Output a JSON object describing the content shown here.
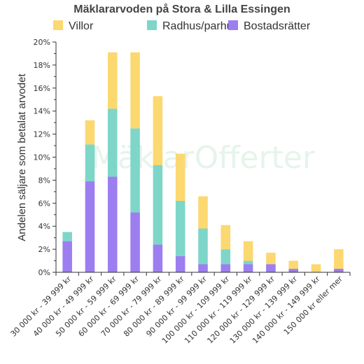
{
  "chart_data": {
    "type": "bar",
    "stacked": true,
    "title": "Mäklararvoden på Stora & Lilla Essingen",
    "ylabel": "Andelen säljare som betalat arvodet",
    "xlabel": "",
    "ylim": [
      0,
      20
    ],
    "y_ticks": [
      "0%",
      "2%",
      "4%",
      "6%",
      "8%",
      "10%",
      "12%",
      "14%",
      "16%",
      "18%",
      "20%"
    ],
    "grid": false,
    "legend_position": "top",
    "watermark": "MäklarOfferter",
    "categories": [
      "30 000 kr - 39 999 kr",
      "40 000 kr - 49 999 kr",
      "50 000 kr - 59 999 kr",
      "60 000 kr - 69 999 kr",
      "70 000 kr - 79 999 kr",
      "80 000 kr - 89 999 kr",
      "90 000 kr - 99 999 kr",
      "100 000 kr - 109 999 kr",
      "110 000 kr - 119 999 kr",
      "120 000 kr - 129 999 kr",
      "130 000 kr - 139 999 kr",
      "140 000 kr - 149 999 kr",
      "150 000 kr eller mer"
    ],
    "series": [
      {
        "name": "Bostadsrätter",
        "color": "#9c7ef0",
        "values": [
          2.7,
          7.9,
          8.3,
          5.2,
          2.4,
          1.4,
          0.7,
          0.7,
          0.7,
          0.7,
          0.3,
          0,
          0.3
        ]
      },
      {
        "name": "Radhus/parhus",
        "color": "#7ed6c9",
        "values": [
          0.8,
          3.2,
          5.9,
          7.3,
          6.9,
          4.8,
          3.1,
          1.3,
          0.3,
          0,
          0,
          0,
          0
        ]
      },
      {
        "name": "Villor",
        "color": "#fcd870",
        "values": [
          0,
          2.1,
          4.9,
          6.6,
          6.0,
          4.1,
          2.8,
          2.1,
          1.7,
          1.0,
          0.7,
          0.7,
          1.7
        ]
      }
    ],
    "legend_order": [
      "Villor",
      "Radhus/parhus",
      "Bostadsrätter"
    ]
  }
}
